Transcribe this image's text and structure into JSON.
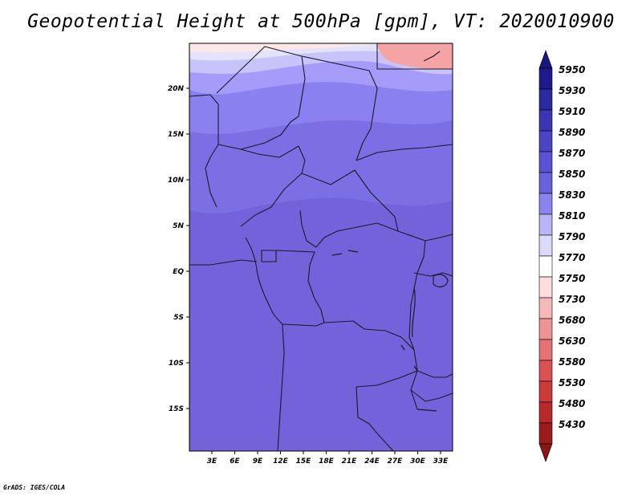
{
  "title": "Geopotential Height at 500hPa [gpm], VT: 2020010900",
  "credit": "GrADS: IGES/COLA",
  "map": {
    "lat_ticks": [
      "20N",
      "15N",
      "10N",
      "5N",
      "EQ",
      "5S",
      "10S",
      "15S"
    ],
    "lon_ticks": [
      "3E",
      "6E",
      "9E",
      "12E",
      "15E",
      "18E",
      "21E",
      "24E",
      "27E",
      "30E",
      "33E"
    ],
    "colors": {
      "south": "#7462db",
      "mid": "#7c6ee3",
      "north_band_1": "#8a80f0",
      "north_band_2": "#a49cf8",
      "north_band_3": "#c8c4fa",
      "north_band_4": "#e4e2fc",
      "north_band_5": "#fde8e8",
      "north_corner": "#f4a4a4",
      "borders": "#1a1a2a"
    }
  },
  "colorbar": {
    "levels": [
      "5950",
      "5930",
      "5910",
      "5890",
      "5870",
      "5850",
      "5830",
      "5810",
      "5790",
      "5770",
      "5750",
      "5730",
      "5680",
      "5630",
      "5580",
      "5530",
      "5480",
      "5430"
    ],
    "colors": [
      "#1e1a8c",
      "#2a2a9e",
      "#3a36b2",
      "#4a45c2",
      "#5a52d2",
      "#6a62dc",
      "#8c84ee",
      "#b8b4f6",
      "#dcdafb",
      "#ffffff",
      "#fcdcdc",
      "#f6b8b8",
      "#ee9494",
      "#e47272",
      "#da5252",
      "#cc3a3a",
      "#b82a2a",
      "#9c1c1c"
    ],
    "top_arrow_color": "#1a1680",
    "bottom_arrow_color": "#8c1414"
  }
}
